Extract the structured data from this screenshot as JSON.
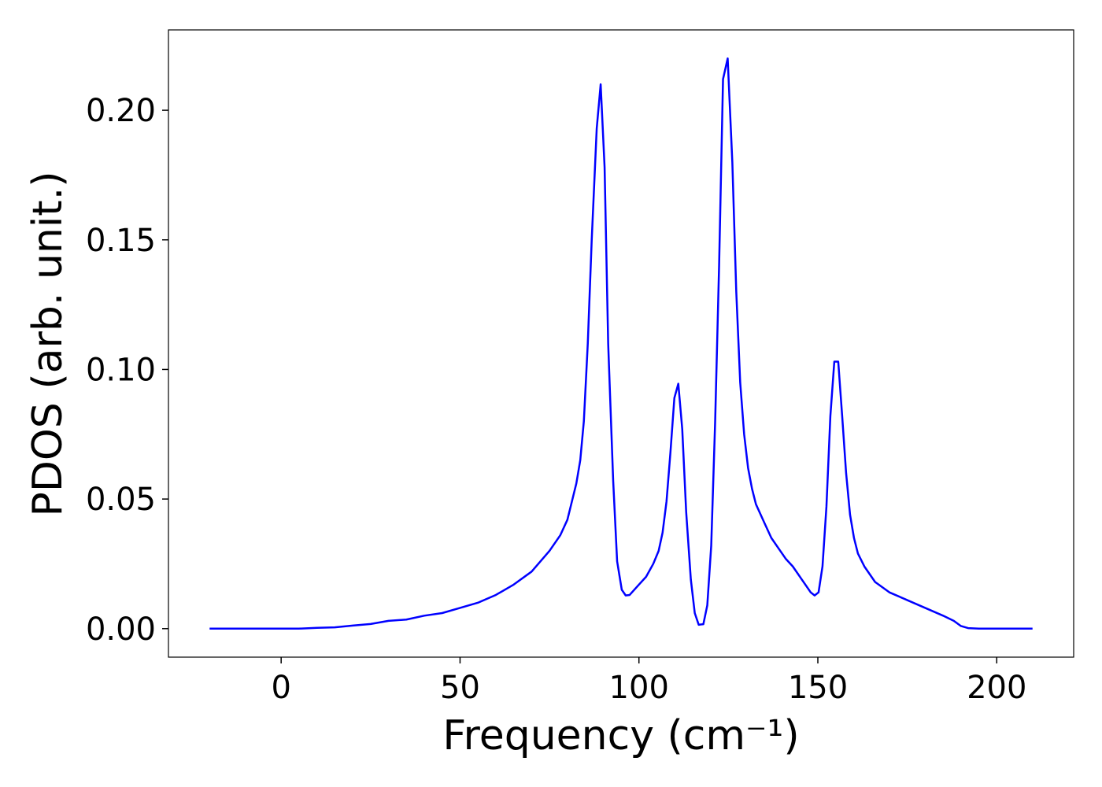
{
  "chart_data": {
    "type": "line",
    "xlabel": "Frequency (cm⁻¹)",
    "ylabel": "PDOS (arb. unit.)",
    "xlim": [
      -31.5,
      221.5
    ],
    "ylim": [
      -0.011,
      0.231
    ],
    "xticks": [
      0,
      50,
      100,
      150,
      200
    ],
    "yticks": [
      {
        "value": 0,
        "label": "0.00"
      },
      {
        "value": 0.05,
        "label": "0.05"
      },
      {
        "value": 0.1,
        "label": "0.10"
      },
      {
        "value": 0.15,
        "label": "0.15"
      },
      {
        "value": 0.2,
        "label": "0.20"
      }
    ],
    "series": [
      {
        "color": "#0000ff",
        "x": [
          -20,
          -10,
          0,
          5,
          10,
          15,
          20,
          25,
          30,
          35,
          40,
          45,
          50,
          55,
          60,
          65,
          70,
          75,
          78,
          80,
          82.5,
          83.6,
          84.6,
          85.7,
          86.8,
          88.2,
          89.3,
          90.4,
          91.4,
          92.8,
          93.9,
          95.2,
          96.3,
          97.4,
          100,
          102,
          104,
          105.5,
          106.6,
          107.7,
          108.8,
          109.9,
          111.0,
          112.1,
          113.2,
          114.5,
          115.6,
          116.7,
          118,
          119.1,
          120.2,
          121.3,
          122.4,
          123.5,
          124.8,
          126.1,
          127.2,
          128.3,
          129.4,
          130.5,
          131.6,
          132.7,
          135,
          137,
          139,
          141,
          143,
          145,
          147,
          148,
          149.1,
          150.2,
          151.3,
          152.4,
          153.5,
          154.6,
          155.7,
          156.8,
          157.9,
          159.0,
          160.1,
          161.2,
          163,
          166,
          170,
          175,
          180,
          185,
          188,
          190,
          192,
          195,
          200,
          210
        ],
        "values": [
          0,
          0,
          0,
          0,
          0.0003,
          0.0005,
          0.0012,
          0.0018,
          0.003,
          0.0035,
          0.005,
          0.006,
          0.008,
          0.01,
          0.013,
          0.017,
          0.022,
          0.03,
          0.036,
          0.042,
          0.056,
          0.065,
          0.08,
          0.11,
          0.15,
          0.193,
          0.21,
          0.178,
          0.11,
          0.057,
          0.026,
          0.015,
          0.0128,
          0.013,
          0.017,
          0.02,
          0.025,
          0.03,
          0.037,
          0.049,
          0.068,
          0.089,
          0.0945,
          0.077,
          0.045,
          0.019,
          0.006,
          0.0015,
          0.0017,
          0.009,
          0.032,
          0.08,
          0.14,
          0.212,
          0.22,
          0.18,
          0.13,
          0.095,
          0.075,
          0.062,
          0.054,
          0.048,
          0.041,
          0.035,
          0.031,
          0.027,
          0.024,
          0.02,
          0.016,
          0.014,
          0.0128,
          0.014,
          0.024,
          0.047,
          0.082,
          0.103,
          0.103,
          0.082,
          0.06,
          0.044,
          0.035,
          0.029,
          0.024,
          0.018,
          0.014,
          0.011,
          0.008,
          0.005,
          0.003,
          0.001,
          0.0002,
          0,
          0,
          0
        ]
      }
    ]
  }
}
